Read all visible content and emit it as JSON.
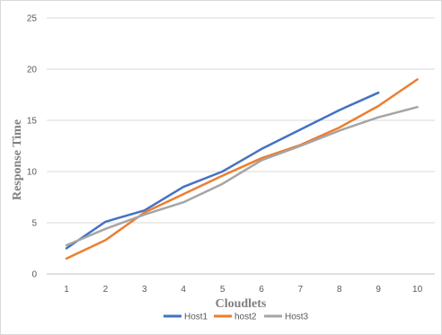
{
  "chart_data": {
    "type": "line",
    "title": "",
    "xlabel": "Cloudlets",
    "ylabel": "Response Time",
    "x": [
      1,
      2,
      3,
      4,
      5,
      6,
      7,
      8,
      9,
      10
    ],
    "ylim": [
      0,
      25
    ],
    "yticks": [
      0,
      5,
      10,
      15,
      20,
      25
    ],
    "grid": "horizontal",
    "legend": "bottom",
    "series": [
      {
        "name": "Host1",
        "color": "#4472C4",
        "values": [
          2.5,
          5.1,
          6.2,
          8.5,
          10.0,
          12.2,
          14.1,
          16.0,
          17.7,
          null
        ]
      },
      {
        "name": "host2",
        "color": "#ED7D31",
        "values": [
          1.5,
          3.3,
          6.0,
          7.8,
          9.6,
          11.3,
          12.6,
          14.3,
          16.4,
          19.0
        ]
      },
      {
        "name": "Host3",
        "color": "#A5A5A5",
        "values": [
          2.8,
          4.4,
          5.8,
          7.0,
          8.8,
          11.1,
          12.5,
          14.0,
          15.3,
          16.3
        ]
      }
    ]
  }
}
